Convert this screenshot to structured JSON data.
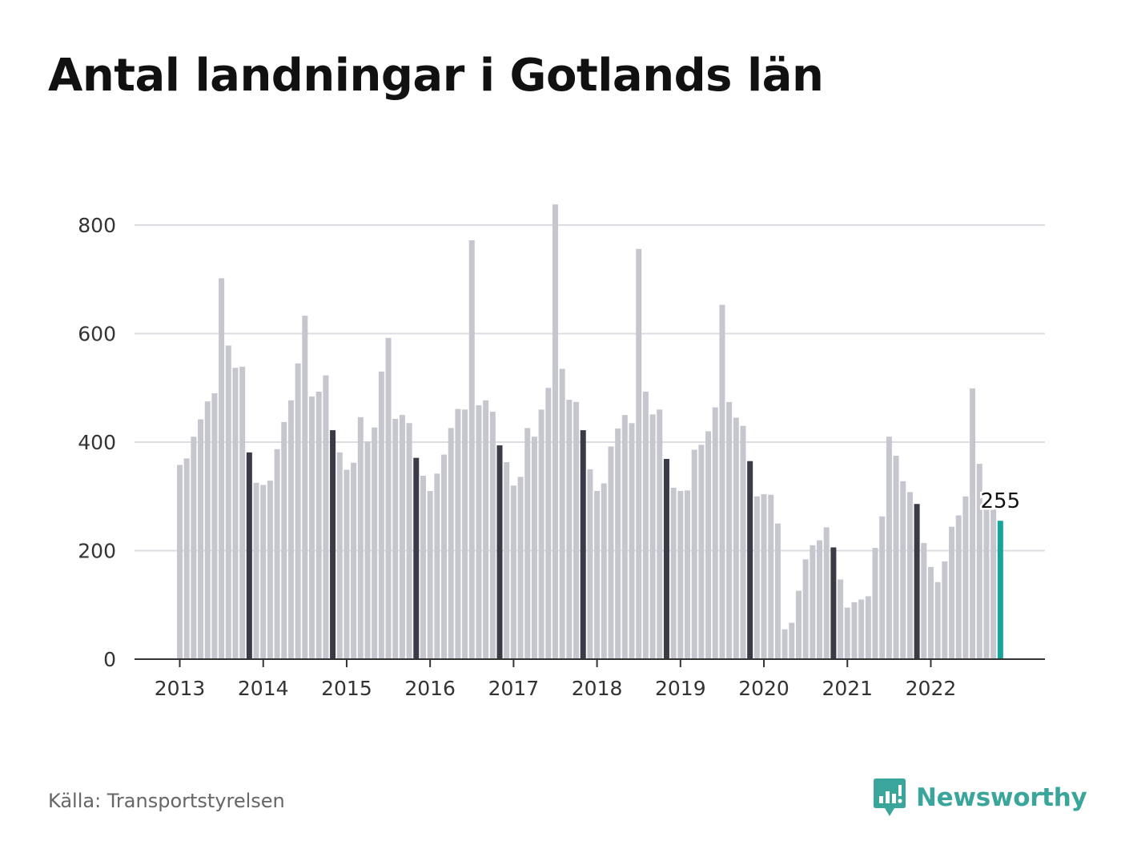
{
  "title": "Antal landningar i Gotlands län",
  "source": "Källa: Transportstyrelsen",
  "brand": {
    "name": "Newsworthy",
    "icon": "newsworthy-logo-icon"
  },
  "colors": {
    "bar": "#c6c6cf",
    "bar_highlight": "#3b3b48",
    "bar_latest": "#16a39a",
    "grid": "#dcdce2",
    "axis": "#333333",
    "brand": "#3aa69b"
  },
  "chart_data": {
    "type": "bar",
    "title": "Antal landningar i Gotlands län",
    "xlabel": "",
    "ylabel": "",
    "ylim": [
      0,
      800
    ],
    "yticks": [
      0,
      200,
      400,
      600,
      800
    ],
    "grid": true,
    "legend": "none",
    "xtick_labels": [
      "2013",
      "2014",
      "2015",
      "2016",
      "2017",
      "2018",
      "2019",
      "2020",
      "2021",
      "2022"
    ],
    "start_period": "2013-01",
    "highlight_note": "november each year dark, last month teal",
    "latest_label": "255",
    "values": [
      358,
      370,
      410,
      442,
      475,
      490,
      702,
      578,
      537,
      539,
      381,
      325,
      321,
      329,
      387,
      437,
      477,
      545,
      633,
      484,
      493,
      523,
      422,
      381,
      349,
      362,
      446,
      401,
      427,
      530,
      592,
      443,
      450,
      435,
      371,
      338,
      310,
      342,
      377,
      426,
      461,
      460,
      772,
      468,
      477,
      456,
      394,
      363,
      320,
      336,
      426,
      410,
      460,
      500,
      838,
      535,
      478,
      474,
      422,
      350,
      310,
      324,
      392,
      425,
      450,
      435,
      756,
      493,
      451,
      460,
      369,
      316,
      310,
      311,
      386,
      395,
      420,
      464,
      653,
      474,
      445,
      430,
      365,
      300,
      304,
      303,
      250,
      55,
      67,
      126,
      184,
      210,
      219,
      243,
      206,
      147,
      95,
      105,
      110,
      116,
      205,
      263,
      410,
      375,
      328,
      308,
      286,
      214,
      170,
      142,
      180,
      244,
      265,
      300,
      499,
      360,
      280,
      278,
      255
    ]
  }
}
